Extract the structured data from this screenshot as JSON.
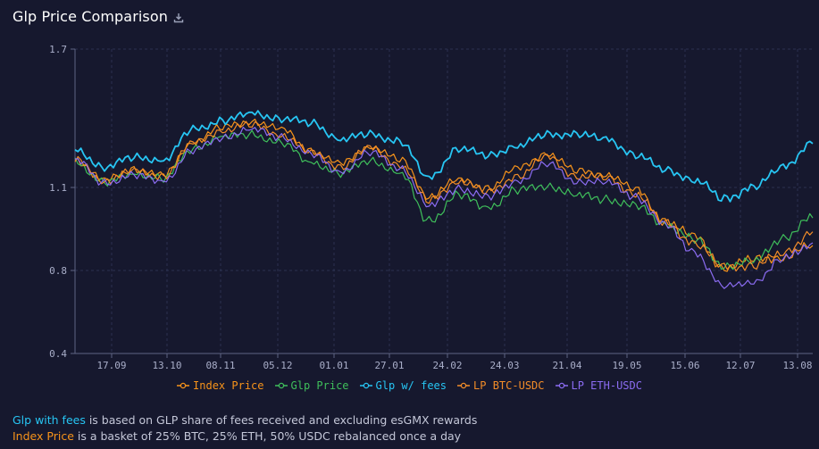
{
  "header": {
    "title": "Glp Price Comparison",
    "download_icon": "download-icon"
  },
  "notes": {
    "line1_highlight": "Glp with fees",
    "line1_rest": " is based on GLP share of fees received and excluding esGMX rewards",
    "line2_highlight": "Index Price",
    "line2_rest": " is a basket of 25% BTC, 25% ETH, 50% USDC rebalanced once a day"
  },
  "chart_data": {
    "type": "line",
    "title": "Glp Price Comparison",
    "xlabel": "",
    "ylabel": "",
    "x_ticks": [
      "17.09",
      "13.10",
      "08.11",
      "05.12",
      "01.01",
      "27.01",
      "24.02",
      "24.03",
      "21.04",
      "19.05",
      "15.06",
      "12.07",
      "13.08"
    ],
    "y_ticks": [
      "0.4",
      "0.8",
      "1.1",
      "1.7"
    ],
    "y_tick_values": [
      0.4,
      0.8,
      1.1,
      1.7
    ],
    "ylim": [
      0.4,
      1.7
    ],
    "grid": true,
    "legend_position": "bottom",
    "x": [
      0,
      0.5,
      1,
      1.5,
      2,
      2.5,
      3,
      3.5,
      4,
      4.5,
      5,
      5.5,
      6,
      6.5,
      7,
      7.5,
      8,
      8.5,
      9,
      9.5,
      10,
      10.5,
      11,
      11.5,
      12,
      12.5
    ],
    "series": [
      {
        "name": "Index Price",
        "color": "#f7931a",
        "values": [
          1.22,
          1.13,
          1.18,
          1.15,
          1.3,
          1.36,
          1.39,
          1.35,
          1.26,
          1.2,
          1.28,
          1.22,
          1.07,
          1.13,
          1.1,
          1.18,
          1.25,
          1.17,
          1.16,
          1.09,
          0.98,
          0.92,
          0.81,
          0.84,
          0.85,
          0.89
        ]
      },
      {
        "name": "Glp Price",
        "color": "#3fbf5b",
        "values": [
          1.21,
          1.12,
          1.16,
          1.14,
          1.27,
          1.32,
          1.33,
          1.29,
          1.21,
          1.16,
          1.22,
          1.16,
          0.98,
          1.07,
          1.03,
          1.09,
          1.11,
          1.07,
          1.06,
          1.03,
          0.97,
          0.91,
          0.82,
          0.83,
          0.92,
          0.99
        ]
      },
      {
        "name": "Glp w/ fees",
        "color": "#27c5f3",
        "values": [
          1.26,
          1.19,
          1.23,
          1.22,
          1.35,
          1.39,
          1.42,
          1.4,
          1.38,
          1.31,
          1.33,
          1.3,
          1.14,
          1.27,
          1.24,
          1.28,
          1.33,
          1.33,
          1.31,
          1.24,
          1.18,
          1.13,
          1.06,
          1.1,
          1.19,
          1.29
        ]
      },
      {
        "name": "LP BTC-USDC",
        "color": "#f28c28",
        "values": [
          1.22,
          1.13,
          1.17,
          1.15,
          1.29,
          1.35,
          1.37,
          1.33,
          1.25,
          1.19,
          1.27,
          1.2,
          1.05,
          1.13,
          1.08,
          1.15,
          1.23,
          1.15,
          1.14,
          1.08,
          0.97,
          0.9,
          0.81,
          0.82,
          0.86,
          0.94
        ]
      },
      {
        "name": "LP ETH-USDC",
        "color": "#8b6cf2",
        "values": [
          1.22,
          1.12,
          1.15,
          1.13,
          1.26,
          1.32,
          1.35,
          1.32,
          1.24,
          1.17,
          1.25,
          1.19,
          1.03,
          1.1,
          1.06,
          1.13,
          1.2,
          1.13,
          1.12,
          1.07,
          0.96,
          0.87,
          0.72,
          0.75,
          0.84,
          0.9
        ]
      }
    ]
  }
}
